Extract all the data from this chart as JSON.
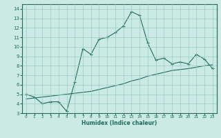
{
  "xlabel": "Humidex (Indice chaleur)",
  "bg_color": "#cceae4",
  "grid_color": "#96ccc4",
  "line_color": "#1e6b5a",
  "xlim": [
    -0.5,
    23.5
  ],
  "ylim": [
    3,
    14.5
  ],
  "xticks": [
    0,
    1,
    2,
    3,
    4,
    5,
    6,
    7,
    8,
    9,
    10,
    11,
    12,
    13,
    14,
    15,
    16,
    17,
    18,
    19,
    20,
    21,
    22,
    23
  ],
  "yticks": [
    3,
    4,
    5,
    6,
    7,
    8,
    9,
    10,
    11,
    12,
    13,
    14
  ],
  "curve1_x": [
    0,
    1,
    2,
    3,
    4,
    5,
    6,
    7,
    8,
    9,
    10,
    11,
    12,
    13,
    14,
    15,
    16,
    17,
    18,
    19,
    20,
    21,
    22,
    23
  ],
  "curve1_y": [
    5.0,
    4.7,
    4.0,
    4.2,
    4.2,
    3.2,
    6.3,
    9.8,
    9.2,
    10.8,
    11.0,
    11.5,
    12.2,
    13.7,
    13.3,
    10.4,
    8.6,
    8.8,
    8.2,
    8.4,
    8.2,
    9.2,
    8.7,
    7.7
  ],
  "curve2_x": [
    0,
    1,
    2,
    3,
    4,
    5,
    6,
    7,
    8,
    9,
    10,
    11,
    12,
    13,
    14,
    15,
    16,
    17,
    18,
    19,
    20,
    21,
    22,
    23
  ],
  "curve2_y": [
    4.5,
    4.6,
    4.7,
    4.8,
    4.9,
    5.0,
    5.1,
    5.2,
    5.3,
    5.5,
    5.7,
    5.9,
    6.1,
    6.4,
    6.6,
    6.9,
    7.1,
    7.3,
    7.5,
    7.6,
    7.7,
    7.85,
    8.0,
    8.1
  ]
}
